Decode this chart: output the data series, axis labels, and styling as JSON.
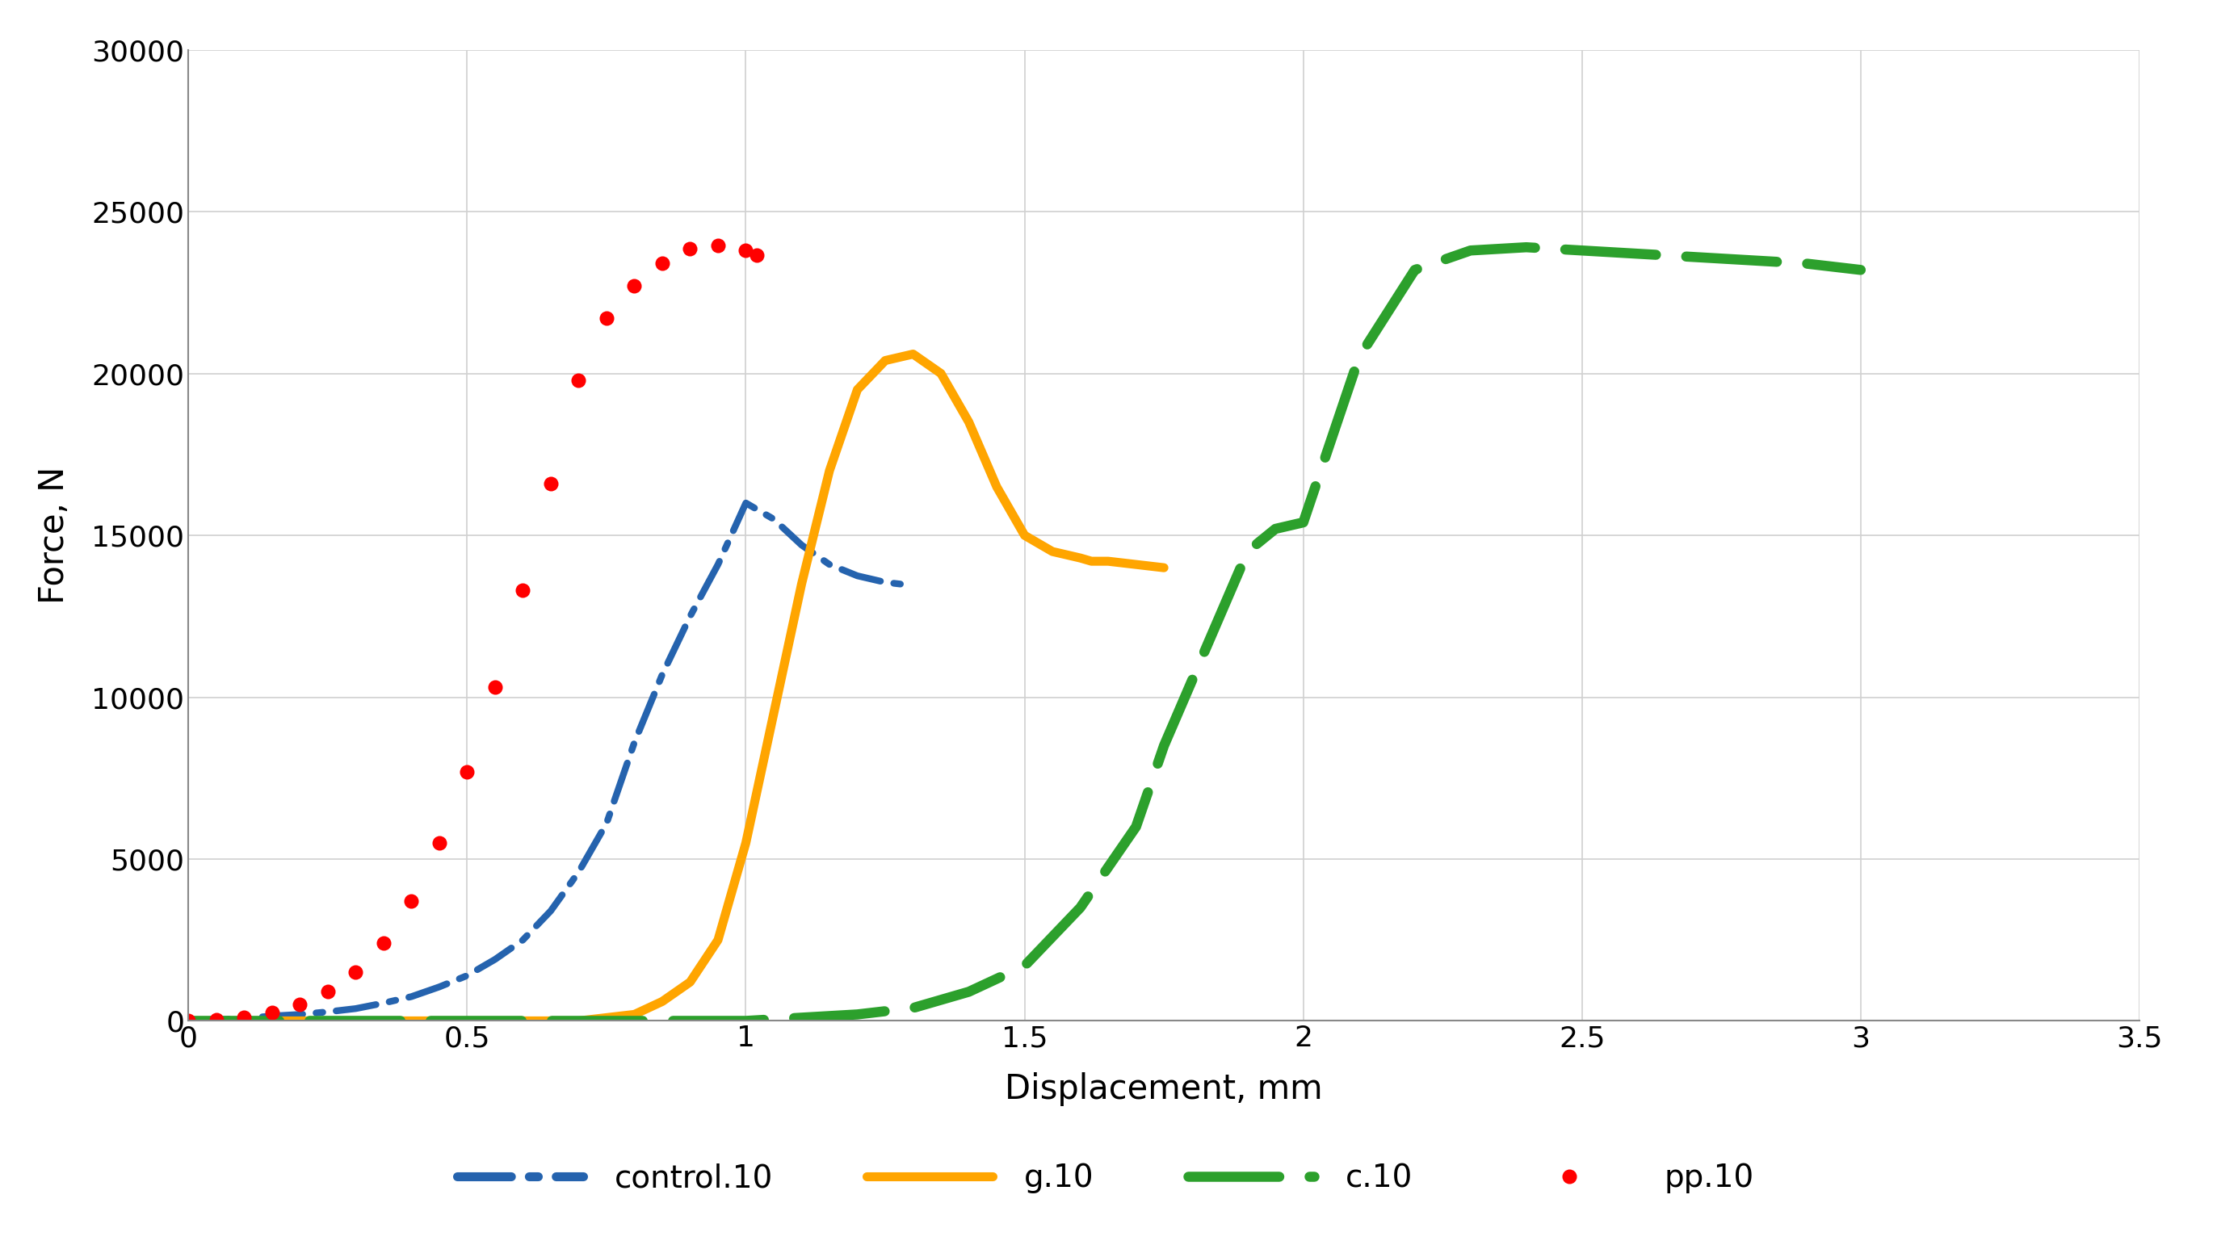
{
  "title": "",
  "xlabel": "Displacement, mm",
  "ylabel": "Force, N",
  "xlim": [
    0,
    3.5
  ],
  "ylim": [
    0,
    30000
  ],
  "xticks": [
    0,
    0.5,
    1.0,
    1.5,
    2.0,
    2.5,
    3.0,
    3.5
  ],
  "yticks": [
    0,
    5000,
    10000,
    15000,
    20000,
    25000,
    30000
  ],
  "background_color": "#ffffff",
  "grid_color": "#d0d0d0",
  "series": {
    "control10": {
      "color": "#2563ae",
      "label": "control.10",
      "x": [
        0,
        0.05,
        0.1,
        0.15,
        0.2,
        0.25,
        0.3,
        0.35,
        0.4,
        0.45,
        0.5,
        0.55,
        0.6,
        0.65,
        0.7,
        0.75,
        0.8,
        0.85,
        0.9,
        0.95,
        1.0,
        1.05,
        1.1,
        1.15,
        1.2,
        1.25,
        1.3
      ],
      "y": [
        0,
        30,
        80,
        150,
        200,
        280,
        380,
        550,
        750,
        1050,
        1400,
        1900,
        2500,
        3400,
        4600,
        6100,
        8600,
        10700,
        12500,
        14100,
        16000,
        15500,
        14700,
        14100,
        13750,
        13550,
        13450
      ]
    },
    "g10": {
      "color": "#ffa500",
      "label": "g.10",
      "x": [
        0,
        0.1,
        0.2,
        0.3,
        0.4,
        0.5,
        0.6,
        0.7,
        0.8,
        0.85,
        0.9,
        0.95,
        1.0,
        1.05,
        1.1,
        1.15,
        1.2,
        1.25,
        1.3,
        1.35,
        1.4,
        1.45,
        1.5,
        1.55,
        1.6,
        1.62,
        1.65,
        1.7,
        1.75
      ],
      "y": [
        0,
        0,
        0,
        0,
        0,
        0,
        0,
        0,
        200,
        600,
        1200,
        2500,
        5500,
        9500,
        13500,
        17000,
        19500,
        20400,
        20600,
        20000,
        18500,
        16500,
        15000,
        14500,
        14300,
        14200,
        14200,
        14100,
        14000
      ]
    },
    "c10": {
      "color": "#2ca02c",
      "label": "c.10",
      "x": [
        0,
        0.2,
        0.4,
        0.6,
        0.8,
        1.0,
        1.1,
        1.2,
        1.3,
        1.4,
        1.5,
        1.6,
        1.7,
        1.75,
        1.8,
        1.85,
        1.9,
        1.95,
        2.0,
        2.1,
        2.2,
        2.3,
        2.4,
        2.5,
        2.6,
        2.7,
        2.8,
        2.9,
        3.0
      ],
      "y": [
        0,
        0,
        0,
        0,
        0,
        0,
        100,
        200,
        400,
        900,
        1700,
        3500,
        6000,
        8500,
        10500,
        12500,
        14500,
        15200,
        15400,
        20500,
        23200,
        23800,
        23900,
        23800,
        23700,
        23600,
        23500,
        23400,
        23200
      ]
    },
    "pp10": {
      "color": "#ff0000",
      "label": "pp.10",
      "x": [
        0,
        0.05,
        0.1,
        0.15,
        0.2,
        0.25,
        0.3,
        0.35,
        0.4,
        0.45,
        0.5,
        0.55,
        0.6,
        0.65,
        0.7,
        0.75,
        0.8,
        0.85,
        0.9,
        0.95,
        1.0,
        1.02
      ],
      "y": [
        0,
        30,
        100,
        250,
        500,
        900,
        1500,
        2400,
        3700,
        5500,
        7700,
        10300,
        13300,
        16600,
        19800,
        21700,
        22700,
        23400,
        23850,
        23950,
        23800,
        23650
      ]
    }
  },
  "legend_labels": [
    "control.10",
    "g.10",
    "c.10",
    "pp.10"
  ]
}
